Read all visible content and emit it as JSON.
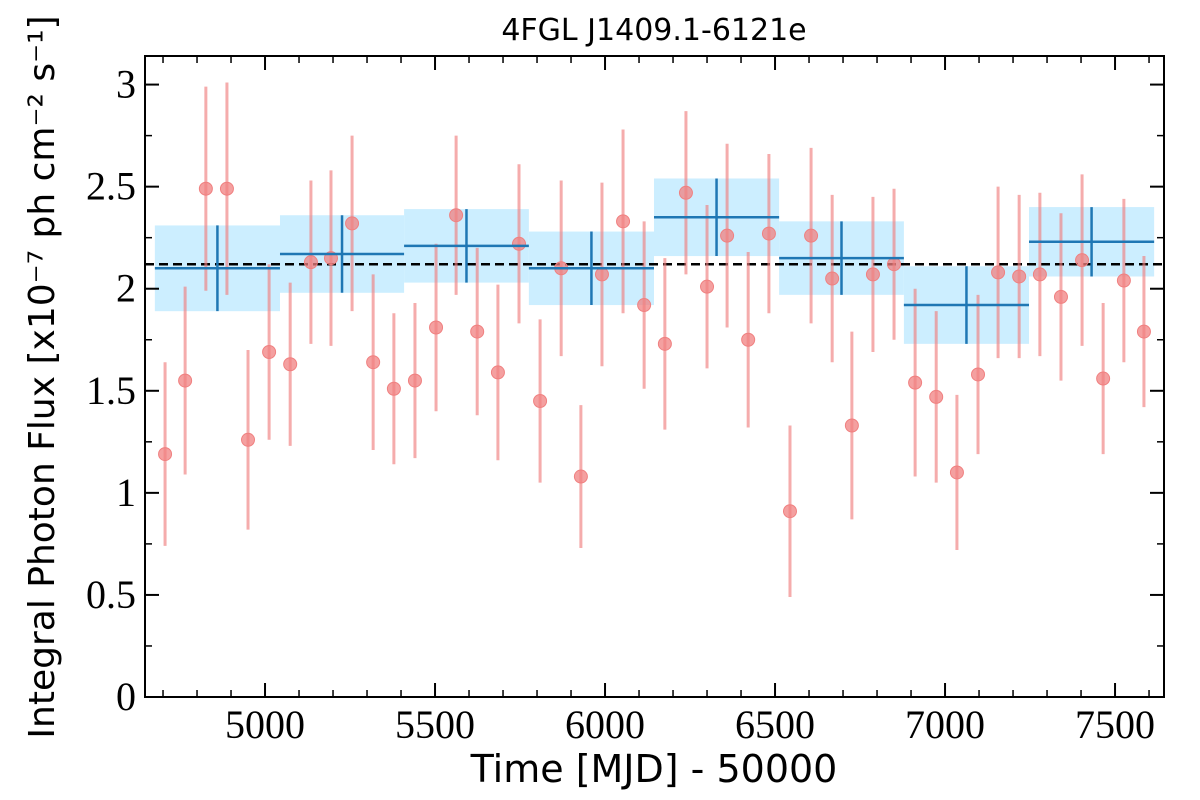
{
  "chart_data": {
    "type": "scatter",
    "title": "4FGL J1409.1-6121e",
    "x_label": "Time [MJD] - 50000",
    "y_label": "Integral Photon Flux [x10⁻⁷ ph cm⁻² s⁻¹]",
    "xlim": [
      4647,
      7644
    ],
    "ylim": [
      0,
      3.14
    ],
    "xticks": [
      5000,
      5500,
      6000,
      6500,
      7000,
      7500
    ],
    "yticks": [
      0,
      0.5,
      1,
      1.5,
      2,
      2.5,
      3
    ],
    "xminorticks": [
      4700,
      4800,
      4900,
      5100,
      5200,
      5300,
      5400,
      5600,
      5700,
      5800,
      5900,
      6100,
      6200,
      6300,
      6400,
      6600,
      6700,
      6800,
      6900,
      7100,
      7200,
      7300,
      7400,
      7600
    ],
    "yminorticks": [
      0.25,
      0.75,
      1.25,
      1.75,
      2.25,
      2.75
    ],
    "series": [
      {
        "color": "#f08080",
        "x": [
          4706,
          4765,
          4826,
          4888,
          4950,
          5012,
          5074,
          5135,
          5194,
          5256,
          5318,
          5379,
          5441,
          5503,
          5562,
          5624,
          5685,
          5747,
          5809,
          5871,
          5929,
          5991,
          6053,
          6115,
          6176,
          6238,
          6300,
          6359,
          6421,
          6482,
          6544,
          6606,
          6668,
          6726,
          6788,
          6850,
          6912,
          6974,
          7035,
          7097,
          7156,
          7218,
          7279,
          7341,
          7403,
          7465,
          7526,
          7585
        ],
        "values": [
          1.19,
          1.55,
          2.49,
          2.49,
          1.26,
          1.69,
          1.63,
          2.13,
          2.15,
          2.32,
          1.64,
          1.51,
          1.55,
          1.81,
          2.36,
          1.79,
          1.59,
          2.22,
          1.45,
          2.1,
          1.08,
          2.07,
          2.33,
          1.92,
          1.73,
          2.47,
          2.01,
          2.26,
          1.75,
          2.27,
          0.91,
          2.26,
          2.05,
          1.33,
          2.07,
          2.12,
          1.54,
          1.47,
          1.1,
          1.58,
          2.08,
          2.06,
          2.07,
          1.96,
          2.14,
          1.56,
          2.04,
          1.79
        ],
        "errors": [
          0.45,
          0.46,
          0.5,
          0.52,
          0.44,
          0.43,
          0.4,
          0.4,
          0.43,
          0.43,
          0.43,
          0.37,
          0.38,
          0.41,
          0.39,
          0.41,
          0.43,
          0.39,
          0.4,
          0.43,
          0.35,
          0.45,
          0.45,
          0.41,
          0.42,
          0.4,
          0.4,
          0.45,
          0.43,
          0.39,
          0.42,
          0.43,
          0.41,
          0.46,
          0.38,
          0.37,
          0.46,
          0.42,
          0.38,
          0.39,
          0.42,
          0.4,
          0.4,
          0.41,
          0.42,
          0.37,
          0.4,
          0.37
        ]
      }
    ],
    "bins": {
      "color": "#1f77b4",
      "band_color": "#cceeff",
      "edges": [
        4676,
        5044,
        5409,
        5776,
        6144,
        6512,
        6879,
        7247,
        7615
      ],
      "values": [
        2.1,
        2.17,
        2.21,
        2.1,
        2.35,
        2.15,
        1.92,
        2.23
      ],
      "errors": [
        0.21,
        0.19,
        0.18,
        0.18,
        0.19,
        0.18,
        0.19,
        0.17
      ]
    },
    "mean": 2.12,
    "mean_color": "#000000"
  }
}
